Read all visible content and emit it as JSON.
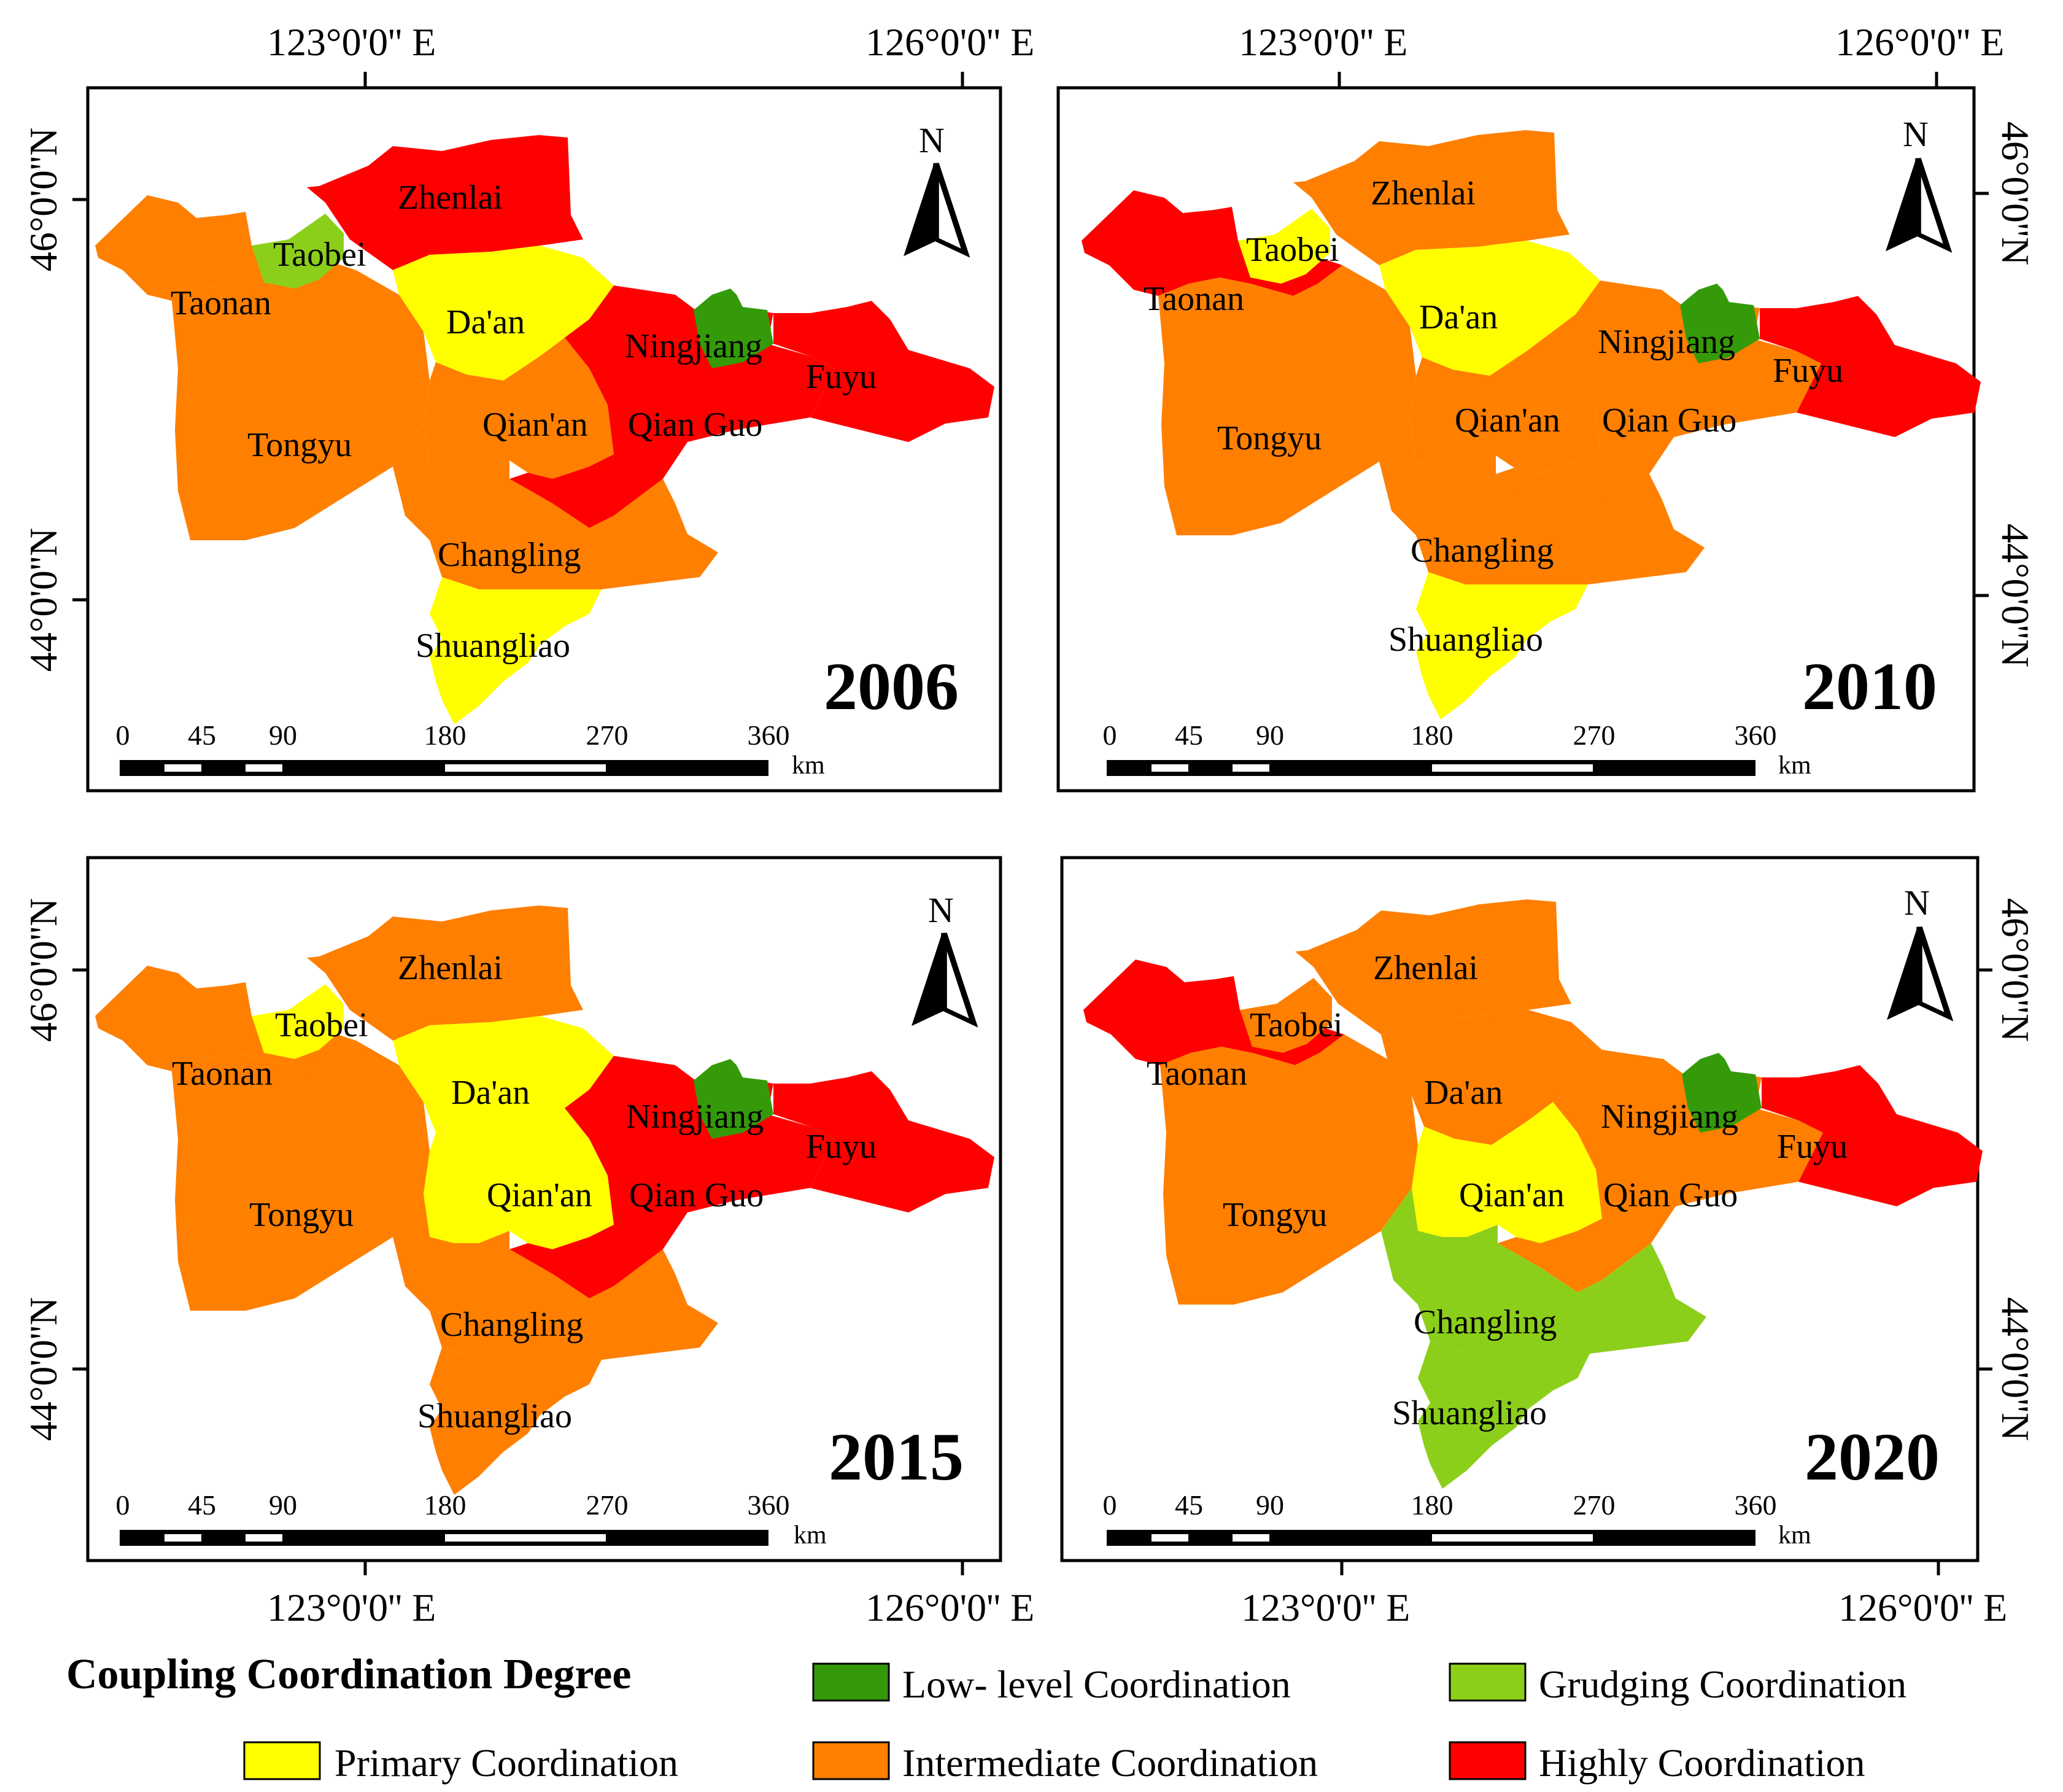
{
  "colors": {
    "low": "#359a0a",
    "grudging": "#8ccf1a",
    "primary": "#ffff00",
    "intermediate": "#ff7f00",
    "highly": "#ff0000",
    "frame": "#000000"
  },
  "maps": [
    {
      "year": "2006",
      "counties": {
        "taonan": "intermediate",
        "taobei": "grudging",
        "zhenlai": "highly",
        "daan": "primary",
        "ningjiang": "low",
        "fuyu": "highly",
        "tongyu": "intermediate",
        "qianan": "intermediate",
        "qianguo": "highly",
        "changling": "intermediate",
        "shuangliao": "primary"
      }
    },
    {
      "year": "2010",
      "counties": {
        "taonan": "highly",
        "taobei": "primary",
        "zhenlai": "intermediate",
        "daan": "primary",
        "ningjiang": "low",
        "fuyu": "highly",
        "tongyu": "intermediate",
        "qianan": "intermediate",
        "qianguo": "intermediate",
        "changling": "intermediate",
        "shuangliao": "primary"
      }
    },
    {
      "year": "2015",
      "counties": {
        "taonan": "intermediate",
        "taobei": "primary",
        "zhenlai": "intermediate",
        "daan": "primary",
        "ningjiang": "low",
        "fuyu": "highly",
        "tongyu": "intermediate",
        "qianan": "primary",
        "qianguo": "highly",
        "changling": "intermediate",
        "shuangliao": "intermediate"
      }
    },
    {
      "year": "2020",
      "counties": {
        "taonan": "highly",
        "taobei": "intermediate",
        "zhenlai": "intermediate",
        "daan": "intermediate",
        "ningjiang": "low",
        "fuyu": "highly",
        "tongyu": "intermediate",
        "qianan": "primary",
        "qianguo": "intermediate",
        "changling": "grudging",
        "shuangliao": "grudging"
      }
    }
  ],
  "county_labels": {
    "zhenlai": "Zhenlai",
    "taobei": "Taobei",
    "taonan": "Taonan",
    "daan": "Da'an",
    "ningjiang": "Ningjiang",
    "fuyu": "Fuyu",
    "tongyu": "Tongyu",
    "qianan": "Qian'an",
    "qianguo": "Qian Guo",
    "changling": "Changling",
    "shuangliao": "Shuangliao"
  },
  "axes": {
    "lon_123": "123°0'0'' E",
    "lon_126": "126°0'0'' E",
    "lat_46": "46°0'0''N",
    "lat_44": "44°0'0''N"
  },
  "north_label": "N",
  "scale": {
    "ticks": [
      "0",
      "45",
      "90",
      "180",
      "270",
      "360"
    ],
    "unit": "km"
  },
  "legend": {
    "title": "Coupling Coordination Degree",
    "low": "Low- level Coordination",
    "grudging": "Grudging Coordination",
    "primary": "Primary Coordination",
    "intermediate": "Intermediate Coordination",
    "highly": "Highly Coordination"
  }
}
